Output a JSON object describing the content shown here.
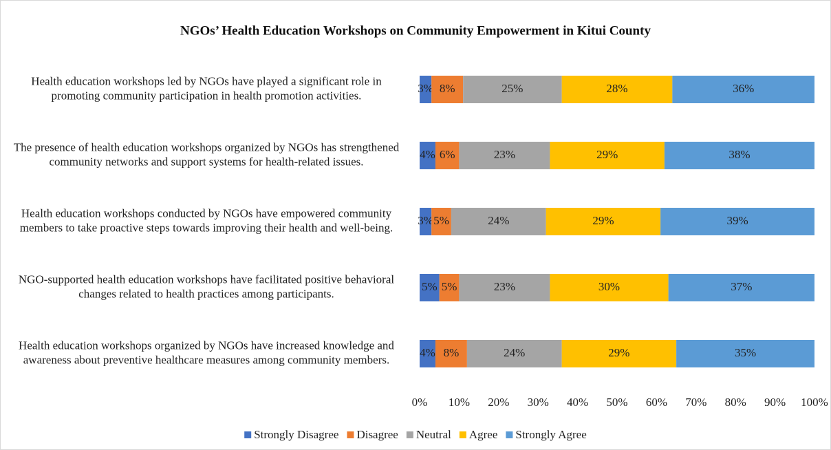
{
  "chart_data": {
    "type": "stacked_barh",
    "title": "NGOs’ Health Education Workshops  on Community Empowerment  in Kitui County",
    "categories": [
      "Health education workshops led by NGOs have played a significant role in promoting community participation in health promotion activities.",
      "The presence of health education workshops organized by NGOs has strengthened community networks and support systems for health-related issues.",
      "Health education workshops conducted by NGOs have empowered community members to take proactive steps towards improving their health and well-being.",
      "NGO-supported health education workshops have facilitated positive behavioral changes related to health practices among participants.",
      "Health education workshops organized by NGOs have increased knowledge and awareness about preventive healthcare measures among community members."
    ],
    "series": [
      {
        "name": "Strongly Disagree",
        "color": "#4472c4",
        "values": [
          3,
          4,
          3,
          5,
          4
        ],
        "value_labels": [
          "3%",
          "4%",
          "3%",
          "5%",
          "4%"
        ]
      },
      {
        "name": "Disagree",
        "color": "#ed7d31",
        "values": [
          8,
          6,
          5,
          5,
          8
        ],
        "value_labels": [
          "8%",
          "6%",
          "5%",
          "5%",
          "8%"
        ]
      },
      {
        "name": "Neutral",
        "color": "#a5a5a5",
        "values": [
          25,
          23,
          24,
          23,
          24
        ],
        "value_labels": [
          "25%",
          "23%",
          "24%",
          "23%",
          "24%"
        ]
      },
      {
        "name": "Agree",
        "color": "#ffc000",
        "values": [
          28,
          29,
          29,
          30,
          29
        ],
        "value_labels": [
          "28%",
          "29%",
          "29%",
          "30%",
          "29%"
        ]
      },
      {
        "name": "Strongly Agree",
        "color": "#5b9bd5",
        "values": [
          36,
          38,
          39,
          37,
          35
        ],
        "value_labels": [
          "36%",
          "38%",
          "39%",
          "37%",
          "35%"
        ]
      }
    ],
    "xlim": [
      0,
      100
    ],
    "xticks": [
      {
        "value": 0,
        "label": "0%"
      },
      {
        "value": 10,
        "label": "10%"
      },
      {
        "value": 20,
        "label": "20%"
      },
      {
        "value": 30,
        "label": "30%"
      },
      {
        "value": 40,
        "label": "40%"
      },
      {
        "value": 50,
        "label": "50%"
      },
      {
        "value": 60,
        "label": "60%"
      },
      {
        "value": 70,
        "label": "70%"
      },
      {
        "value": 80,
        "label": "80%"
      },
      {
        "value": 90,
        "label": "90%"
      },
      {
        "value": 100,
        "label": "100%"
      }
    ],
    "legend": "bottom"
  }
}
